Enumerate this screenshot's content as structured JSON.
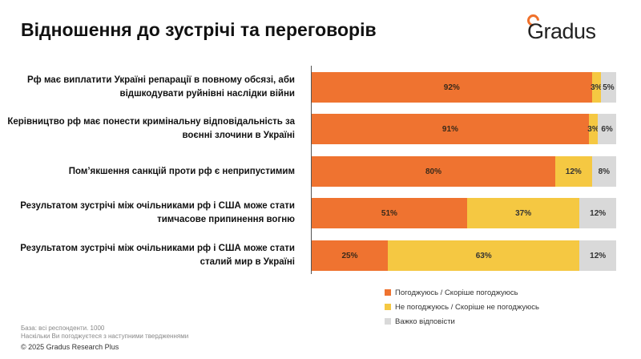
{
  "header": {
    "title": "Відношення до зустрічі та переговорів",
    "logo_text": "Gradus"
  },
  "colors": {
    "agree": "#ef7330",
    "disagree": "#f5c842",
    "hard": "#d9d9d9",
    "logo_accent": "#f0712b"
  },
  "chart_data": {
    "type": "bar",
    "orientation": "horizontal",
    "stacked": true,
    "categories": [
      "Рф має виплатити Україні репарації в повному обсязі, аби відшкодувати руйнівні наслідки війни",
      "Керівництво рф має понести кримінальну відповідальність за воєнні злочини в Україні",
      "Пом’якшення санкцій проти рф є неприпустимим",
      "Результатом зустрічі між очільниками рф і США може стати тимчасове припинення вогню",
      "Результатом зустрічі між очільниками рф і США може стати сталий мир в Україні"
    ],
    "series": [
      {
        "name": "Погоджуюсь / Скоріше погоджуюсь",
        "values": [
          92,
          91,
          80,
          51,
          25
        ],
        "labels": [
          "92%",
          "91%",
          "80%",
          "51%",
          "25%"
        ]
      },
      {
        "name": "Не погоджуюсь / Скоріше не погоджуюсь",
        "values": [
          3,
          3,
          12,
          37,
          63
        ],
        "labels": [
          "3%",
          "3%",
          "12%",
          "37%",
          "63%"
        ]
      },
      {
        "name": "Важко відповісти",
        "values": [
          5,
          6,
          8,
          12,
          12
        ],
        "labels": [
          "5%",
          "6%",
          "8%",
          "12%",
          "12%"
        ]
      }
    ],
    "xlim": [
      0,
      100
    ],
    "legend_position": "bottom-right"
  },
  "footer": {
    "base": "База: всі респонденти. 1000",
    "question": "Наскільки Ви погоджуєтеся з наступними твердженнями",
    "copyright": "© 2025 Gradus Research Plus"
  }
}
